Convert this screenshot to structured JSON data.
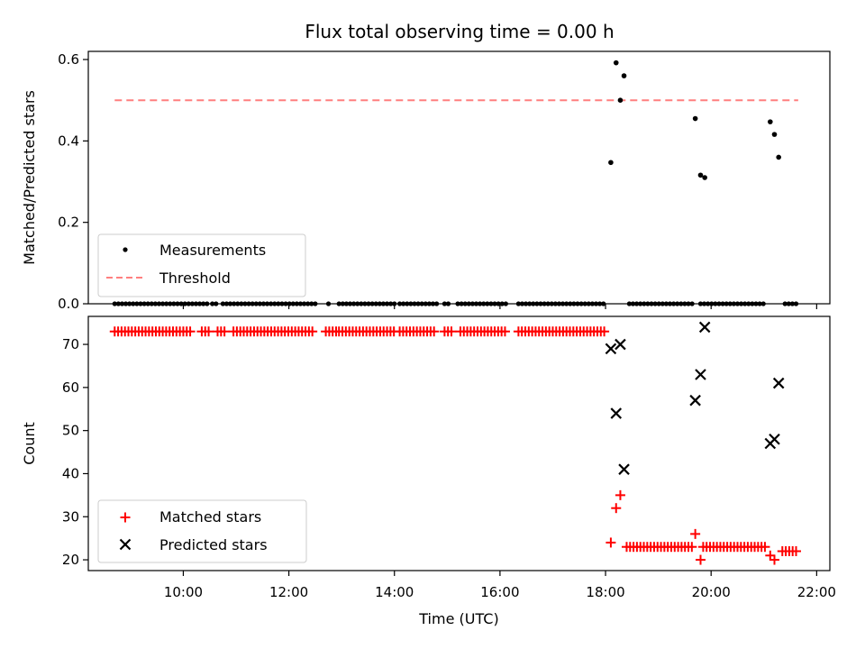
{
  "chart_data": {
    "title": "Flux total observing time = 0.00 h",
    "xlabel": "Time (UTC)",
    "x_ticks": [
      "10:00",
      "12:00",
      "14:00",
      "16:00",
      "18:00",
      "20:00",
      "22:00"
    ],
    "x_tick_hours": [
      10,
      12,
      14,
      16,
      18,
      20,
      22
    ],
    "xlim_hours": [
      8.2,
      22.25
    ],
    "panels": [
      {
        "type": "scatter",
        "ylabel": "Matched/Predicted stars",
        "ylim": [
          0,
          0.62
        ],
        "y_ticks": [
          0.0,
          0.2,
          0.4,
          0.6
        ],
        "y_tick_labels": [
          "0.0",
          "0.2",
          "0.4",
          "0.6"
        ],
        "legend_position": "lower-left",
        "legend": [
          {
            "label": "Measurements",
            "marker": "dot",
            "color": "#000000"
          },
          {
            "label": "Threshold",
            "marker": "dashed-line",
            "color": "#ff7f7f"
          }
        ],
        "threshold": {
          "y": 0.5,
          "x_start": 8.7,
          "x_end": 21.65,
          "color": "#ff7f7f"
        },
        "series": [
          {
            "name": "Measurements",
            "color": "#000000",
            "zero_segments": [
              [
                8.7,
                10.5
              ],
              [
                10.55,
                10.65
              ],
              [
                10.75,
                12.55
              ],
              [
                12.75,
                12.8
              ],
              [
                12.95,
                14.0
              ],
              [
                14.1,
                14.8
              ],
              [
                14.95,
                15.05
              ],
              [
                15.2,
                16.15
              ],
              [
                16.35,
                18.0
              ],
              [
                18.45,
                19.7
              ],
              [
                19.8,
                21.05
              ],
              [
                21.4,
                21.65
              ]
            ],
            "zero_step": 0.07,
            "points": [
              {
                "x": 18.1,
                "y": 0.347
              },
              {
                "x": 18.2,
                "y": 0.592
              },
              {
                "x": 18.28,
                "y": 0.5
              },
              {
                "x": 18.35,
                "y": 0.56
              },
              {
                "x": 19.7,
                "y": 0.455
              },
              {
                "x": 19.8,
                "y": 0.316
              },
              {
                "x": 19.88,
                "y": 0.31
              },
              {
                "x": 21.12,
                "y": 0.447
              },
              {
                "x": 21.2,
                "y": 0.416
              },
              {
                "x": 21.28,
                "y": 0.36
              }
            ]
          }
        ]
      },
      {
        "type": "scatter",
        "ylabel": "Count",
        "ylim": [
          17.5,
          76.5
        ],
        "y_ticks": [
          20,
          30,
          40,
          50,
          60,
          70
        ],
        "y_tick_labels": [
          "20",
          "30",
          "40",
          "50",
          "60",
          "70"
        ],
        "legend_position": "lower-left",
        "legend": [
          {
            "label": "Matched stars",
            "marker": "plus",
            "color": "#ff0000"
          },
          {
            "label": "Predicted stars",
            "marker": "x",
            "color": "#000000"
          }
        ],
        "series": [
          {
            "name": "Matched stars",
            "color": "#ff0000",
            "marker": "plus",
            "const_segments": [
              {
                "y": 73,
                "from": 8.7,
                "to": 10.15
              },
              {
                "y": 73,
                "from": 10.35,
                "to": 10.5
              },
              {
                "y": 73,
                "from": 10.65,
                "to": 10.8
              },
              {
                "y": 73,
                "from": 10.95,
                "to": 12.5
              },
              {
                "y": 73,
                "from": 12.7,
                "to": 12.9
              },
              {
                "y": 73,
                "from": 12.95,
                "to": 14.0
              },
              {
                "y": 73,
                "from": 14.1,
                "to": 14.8
              },
              {
                "y": 73,
                "from": 14.95,
                "to": 15.1
              },
              {
                "y": 73,
                "from": 15.25,
                "to": 16.15
              },
              {
                "y": 73,
                "from": 16.35,
                "to": 18.0
              },
              {
                "y": 23,
                "from": 18.4,
                "to": 19.65
              },
              {
                "y": 23,
                "from": 19.85,
                "to": 21.05
              },
              {
                "y": 22,
                "from": 21.35,
                "to": 21.65
              }
            ],
            "const_step": 0.065,
            "points": [
              {
                "x": 18.1,
                "y": 24
              },
              {
                "x": 18.2,
                "y": 32
              },
              {
                "x": 18.28,
                "y": 35
              },
              {
                "x": 19.7,
                "y": 26
              },
              {
                "x": 19.8,
                "y": 20
              },
              {
                "x": 21.12,
                "y": 21
              },
              {
                "x": 21.2,
                "y": 20
              }
            ]
          },
          {
            "name": "Predicted stars",
            "color": "#000000",
            "marker": "x",
            "points": [
              {
                "x": 18.1,
                "y": 69
              },
              {
                "x": 18.2,
                "y": 54
              },
              {
                "x": 18.28,
                "y": 70
              },
              {
                "x": 18.35,
                "y": 41
              },
              {
                "x": 19.7,
                "y": 57
              },
              {
                "x": 19.8,
                "y": 63
              },
              {
                "x": 19.88,
                "y": 74
              },
              {
                "x": 21.12,
                "y": 47
              },
              {
                "x": 21.2,
                "y": 48
              },
              {
                "x": 21.28,
                "y": 61
              }
            ]
          }
        ]
      }
    ]
  }
}
